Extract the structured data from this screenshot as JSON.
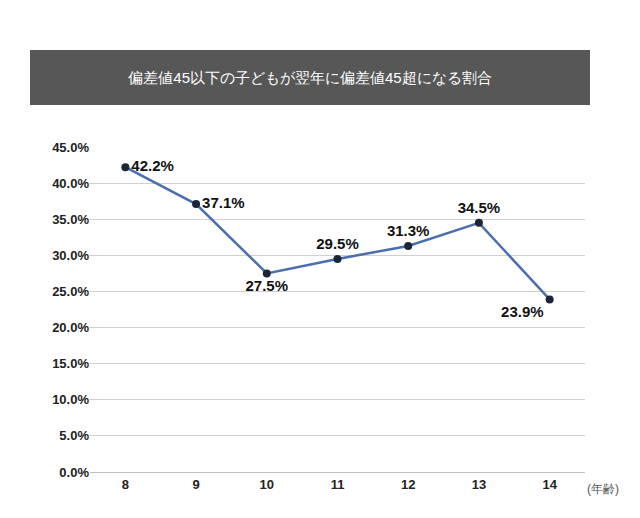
{
  "chart_data": {
    "type": "line",
    "title": "偏差値45以下の子どもが翌年に偏差値45超になる割合",
    "x_label": "(年齢)",
    "categories": [
      "8",
      "9",
      "10",
      "11",
      "12",
      "13",
      "14"
    ],
    "values": [
      42.2,
      37.1,
      27.5,
      29.5,
      31.3,
      34.5,
      23.9
    ],
    "value_labels": [
      "42.2%",
      "37.1%",
      "27.5%",
      "29.5%",
      "31.3%",
      "34.5%",
      "23.9%"
    ],
    "color": "#4a6eb0",
    "marker": "circle",
    "ylim": [
      0,
      45
    ],
    "yticks": [
      {
        "value": 0,
        "label": "0.0%"
      },
      {
        "value": 5,
        "label": "5.0%"
      },
      {
        "value": 10,
        "label": "10.0%"
      },
      {
        "value": 15,
        "label": "15.0%"
      },
      {
        "value": 20,
        "label": "20.0%"
      },
      {
        "value": 25,
        "label": "25.0%"
      },
      {
        "value": 30,
        "label": "30.0%"
      },
      {
        "value": 35,
        "label": "35.0%"
      },
      {
        "value": 40,
        "label": "40.0%"
      },
      {
        "value": 45,
        "label": "45.0%"
      }
    ],
    "grid": true,
    "data_labels": true
  }
}
